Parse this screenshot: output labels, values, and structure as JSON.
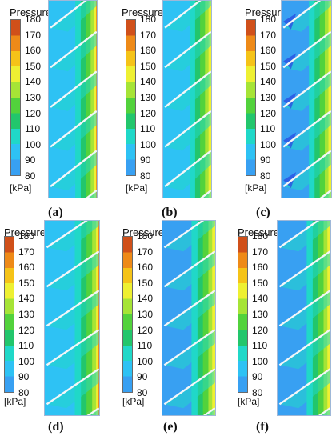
{
  "legend": {
    "title": "Pressure",
    "unit": "[kPa]",
    "ticks": [
      "180",
      "170",
      "160",
      "150",
      "140",
      "130",
      "120",
      "110",
      "100",
      "90",
      "80"
    ],
    "colors": [
      "#d0501a",
      "#ee8a18",
      "#f5c318",
      "#eef032",
      "#a6e436",
      "#52d23c",
      "#22c66c",
      "#20d8c8",
      "#2ec2f4",
      "#38a0f2",
      "#2a50e2"
    ]
  },
  "panels": [
    {
      "caption": "(a)"
    },
    {
      "caption": "(b)"
    },
    {
      "caption": "(c)"
    },
    {
      "caption": "(d)"
    },
    {
      "caption": "(e)"
    },
    {
      "caption": "(f)"
    }
  ]
}
